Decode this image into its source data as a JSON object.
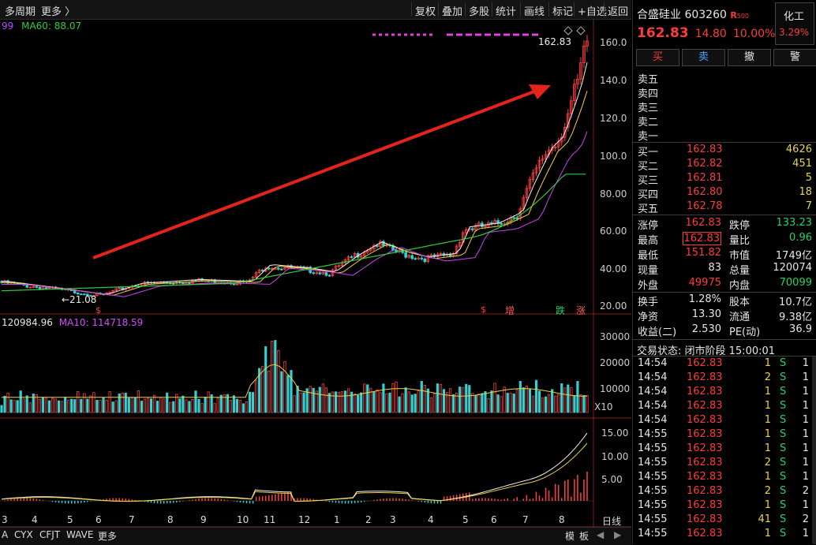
{
  "toolbar": {
    "period_label": "多周期",
    "more_label": "更多 〉",
    "buttons": [
      "复权",
      "叠加",
      "多股",
      "统计",
      "画线",
      "标记",
      "+自选",
      "返回"
    ]
  },
  "chart": {
    "ma_legend_top": {
      "prefix": "99",
      "ma60_label": "MA60: 88.07"
    },
    "price_axis": [
      "160.0",
      "140.0",
      "120.0",
      "100.0",
      "80.00",
      "60.00",
      "40.00",
      "20.00"
    ],
    "last_price_label": "162.83",
    "low_label": "←21.08",
    "markers": {
      "s1": "$",
      "s2": "$",
      "zeng": "增",
      "die": "跌",
      "zhang": "涨"
    },
    "volume_legend": {
      "prefix": "120984.96",
      "ma10_label": "MA10: 114718.59"
    },
    "volume_axis": [
      "30000",
      "20000",
      "10000"
    ],
    "volume_unit": "X10",
    "macd_axis": [
      "15.00",
      "10.00",
      "5.00"
    ],
    "months": [
      "3",
      "4",
      "5",
      "6",
      "7",
      "8",
      "9",
      "10",
      "11",
      "12",
      "1",
      "2",
      "3",
      "4",
      "5",
      "6",
      "7",
      "8"
    ],
    "daily_label": "日线"
  },
  "bottom": {
    "tabs": [
      "A",
      "CYX",
      "CFJT",
      "WAVE",
      "更多"
    ],
    "right_tabs": [
      "模",
      "板"
    ]
  },
  "quote": {
    "name": "合盛硅业",
    "code": "603260",
    "badge": "R",
    "badge_sub": "500",
    "sector": "化工",
    "sector_change": "3.29%",
    "price": "162.83",
    "change": "14.80",
    "pct": "10.00%",
    "actions": [
      "买",
      "卖",
      "撤",
      "警"
    ],
    "asks": [
      "卖五",
      "卖四",
      "卖三",
      "卖二",
      "卖一"
    ],
    "bids": [
      {
        "label": "买一",
        "price": "162.83",
        "vol": "4626"
      },
      {
        "label": "买二",
        "price": "162.82",
        "vol": "451"
      },
      {
        "label": "买三",
        "price": "162.81",
        "vol": "5"
      },
      {
        "label": "买四",
        "price": "162.80",
        "vol": "18"
      },
      {
        "label": "买五",
        "price": "162.78",
        "vol": "7"
      }
    ],
    "stats": [
      {
        "l1": "涨停",
        "v1": "162.83",
        "c1": "red",
        "l2": "跌停",
        "v2": "133.23",
        "c2": "green"
      },
      {
        "l1": "最高",
        "v1": "162.83",
        "c1": "red",
        "l2": "量比",
        "v2": "0.96",
        "c2": "green"
      },
      {
        "l1": "最低",
        "v1": "151.82",
        "c1": "red",
        "l2": "市值",
        "v2": "1749亿",
        "c2": "white"
      },
      {
        "l1": "现量",
        "v1": "83",
        "c1": "white",
        "l2": "总量",
        "v2": "120074",
        "c2": "white"
      },
      {
        "l1": "外盘",
        "v1": "49975",
        "c1": "red",
        "l2": "内盘",
        "v2": "70099",
        "c2": "green"
      }
    ],
    "stats2": [
      {
        "l1": "换手",
        "v1": "1.28%",
        "l2": "股本",
        "v2": "10.7亿"
      },
      {
        "l1": "净资",
        "v1": "13.30",
        "l2": "流通",
        "v2": "9.38亿"
      },
      {
        "l1": "收益(二)",
        "v1": "2.530",
        "l2": "PE(动)",
        "v2": "36.9"
      }
    ],
    "status_label": "交易状态: 闭市阶段 15:00:01",
    "trades": [
      {
        "t": "14:54",
        "p": "162.83",
        "v": "1",
        "s": "S",
        "n": "1"
      },
      {
        "t": "14:54",
        "p": "162.83",
        "v": "2",
        "s": "S",
        "n": "1"
      },
      {
        "t": "14:54",
        "p": "162.83",
        "v": "1",
        "s": "S",
        "n": "1"
      },
      {
        "t": "14:54",
        "p": "162.83",
        "v": "1",
        "s": "S",
        "n": "1"
      },
      {
        "t": "14:54",
        "p": "162.83",
        "v": "1",
        "s": "S",
        "n": "1"
      },
      {
        "t": "14:55",
        "p": "162.83",
        "v": "1",
        "s": "S",
        "n": "1"
      },
      {
        "t": "14:55",
        "p": "162.83",
        "v": "1",
        "s": "S",
        "n": "1"
      },
      {
        "t": "14:55",
        "p": "162.83",
        "v": "2",
        "s": "S",
        "n": "1"
      },
      {
        "t": "14:55",
        "p": "162.83",
        "v": "1",
        "s": "S",
        "n": "1"
      },
      {
        "t": "14:55",
        "p": "162.83",
        "v": "2",
        "s": "S",
        "n": "2"
      },
      {
        "t": "14:55",
        "p": "162.83",
        "v": "1",
        "s": "S",
        "n": "1"
      },
      {
        "t": "14:55",
        "p": "162.83",
        "v": "41",
        "s": "S",
        "n": "2"
      },
      {
        "t": "14:55",
        "p": "162.83",
        "v": "1",
        "s": "S",
        "n": "1"
      }
    ]
  }
}
